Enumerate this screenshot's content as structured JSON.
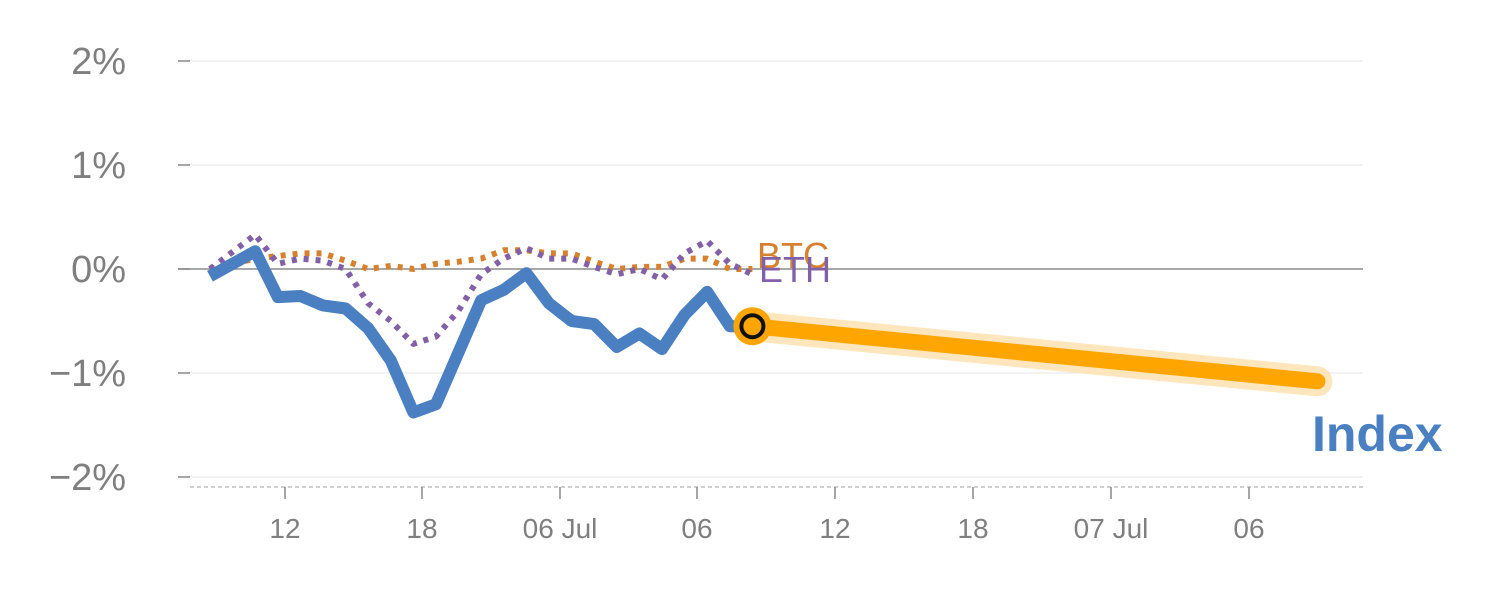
{
  "chart_data": {
    "type": "line",
    "x_ticks": [
      "12",
      "18",
      "06 Jul",
      "06",
      "12",
      "18",
      "07 Jul",
      "06"
    ],
    "y_ticks": [
      "2%",
      "1%",
      "0%",
      "−1%",
      "−2%"
    ],
    "ylim": [
      -2,
      2
    ],
    "x_range": [
      0,
      50
    ],
    "grid": true,
    "series": [
      {
        "name": "Index",
        "color": "#4a7fc1",
        "style": "solid",
        "x": [
          0,
          1,
          2,
          3,
          4,
          5,
          6,
          7,
          8,
          9,
          10,
          11,
          12,
          13,
          14,
          15,
          16,
          17,
          18,
          19,
          20,
          21,
          22,
          23,
          24
        ],
        "values": [
          -0.07,
          0.05,
          0.17,
          -0.27,
          -0.26,
          -0.35,
          -0.38,
          -0.57,
          -0.88,
          -1.38,
          -1.3,
          -0.8,
          -0.3,
          -0.2,
          -0.04,
          -0.33,
          -0.5,
          -0.53,
          -0.75,
          -0.62,
          -0.77,
          -0.44,
          -0.22,
          -0.55,
          -0.55
        ]
      },
      {
        "name": "Index projection",
        "color": "#ffa500",
        "style": "solid-highlight",
        "x": [
          24,
          49
        ],
        "values": [
          -0.55,
          -1.08
        ]
      },
      {
        "name": "BTC",
        "color": "#d7812f",
        "style": "dotted",
        "x": [
          0,
          2,
          4,
          5,
          6,
          7,
          8,
          9,
          10,
          11,
          12,
          13,
          14,
          15,
          16,
          17,
          18,
          19,
          20,
          21,
          22,
          23,
          24
        ],
        "values": [
          0,
          0.1,
          0.15,
          0.15,
          0.08,
          0,
          0.03,
          0,
          0.05,
          0.07,
          0.1,
          0.18,
          0.18,
          0.15,
          0.15,
          0.07,
          0,
          0.02,
          0.02,
          0.1,
          0.1,
          0,
          0
        ]
      },
      {
        "name": "ETH",
        "color": "#8260a8",
        "style": "dotted",
        "x": [
          0,
          2,
          3,
          4,
          5,
          6,
          7,
          8,
          9,
          10,
          11,
          12,
          13,
          14,
          15,
          16,
          17,
          18,
          19,
          20,
          21,
          22,
          23,
          24
        ],
        "values": [
          0,
          0.33,
          0.05,
          0.1,
          0.08,
          0,
          -0.33,
          -0.5,
          -0.72,
          -0.65,
          -0.4,
          -0.05,
          0.1,
          0.2,
          0.1,
          0.1,
          0.02,
          -0.05,
          0,
          -0.1,
          0.15,
          0.27,
          0.05,
          -0.05
        ]
      }
    ],
    "highlight_point": {
      "x": 24,
      "value": -0.55
    },
    "labels": {
      "btc": "BTC",
      "eth": "ETH",
      "index": "Index"
    }
  }
}
